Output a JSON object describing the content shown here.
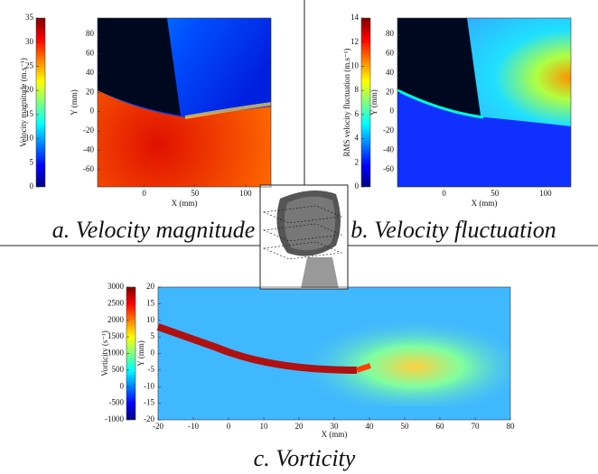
{
  "chart_data": [
    {
      "type": "heatmap",
      "caption": "a. Velocity magnitude",
      "x_label": "X (mm)",
      "y_label": "Y (mm)",
      "colorbar_label": "Velocity magnitude (m.s⁻¹)",
      "xlim": [
        -46,
        125
      ],
      "xticks": [
        0,
        50,
        100
      ],
      "ylim": [
        -78,
        97
      ],
      "yticks": [
        80,
        60,
        40,
        20,
        0,
        -20,
        -40,
        -60
      ],
      "clim": [
        0,
        35
      ],
      "cticks": [
        0,
        5,
        10,
        15,
        20,
        25,
        30,
        35
      ]
    },
    {
      "type": "heatmap",
      "caption": "b. Velocity fluctuation",
      "x_label": "X (mm)",
      "y_label": "Y (mm)",
      "colorbar_label": "RMS velocity fluctuation (m.s⁻¹)",
      "xlim": [
        -46,
        125
      ],
      "xticks": [
        0,
        50,
        100
      ],
      "ylim": [
        -78,
        97
      ],
      "yticks": [
        80,
        60,
        40,
        20,
        0,
        -20,
        -40,
        -60
      ],
      "clim": [
        0,
        14
      ],
      "cticks": [
        0,
        2,
        4,
        6,
        8,
        10,
        12,
        14
      ]
    },
    {
      "type": "heatmap",
      "caption": "c. Vorticity",
      "x_label": "X (mm)",
      "y_label": "Y (mm)",
      "colorbar_label": "Vorticity (s⁻¹)",
      "xlim": [
        -20,
        80
      ],
      "xticks": [
        -20,
        -10,
        0,
        10,
        20,
        30,
        40,
        50,
        60,
        70,
        80
      ],
      "ylim": [
        -20,
        20
      ],
      "yticks": [
        20,
        15,
        10,
        5,
        0,
        -5,
        -10,
        -15,
        -20
      ],
      "clim": [
        -1000,
        3000
      ],
      "cticks": [
        3000,
        2500,
        2000,
        1500,
        1000,
        500,
        0,
        -500,
        -1000
      ]
    }
  ]
}
